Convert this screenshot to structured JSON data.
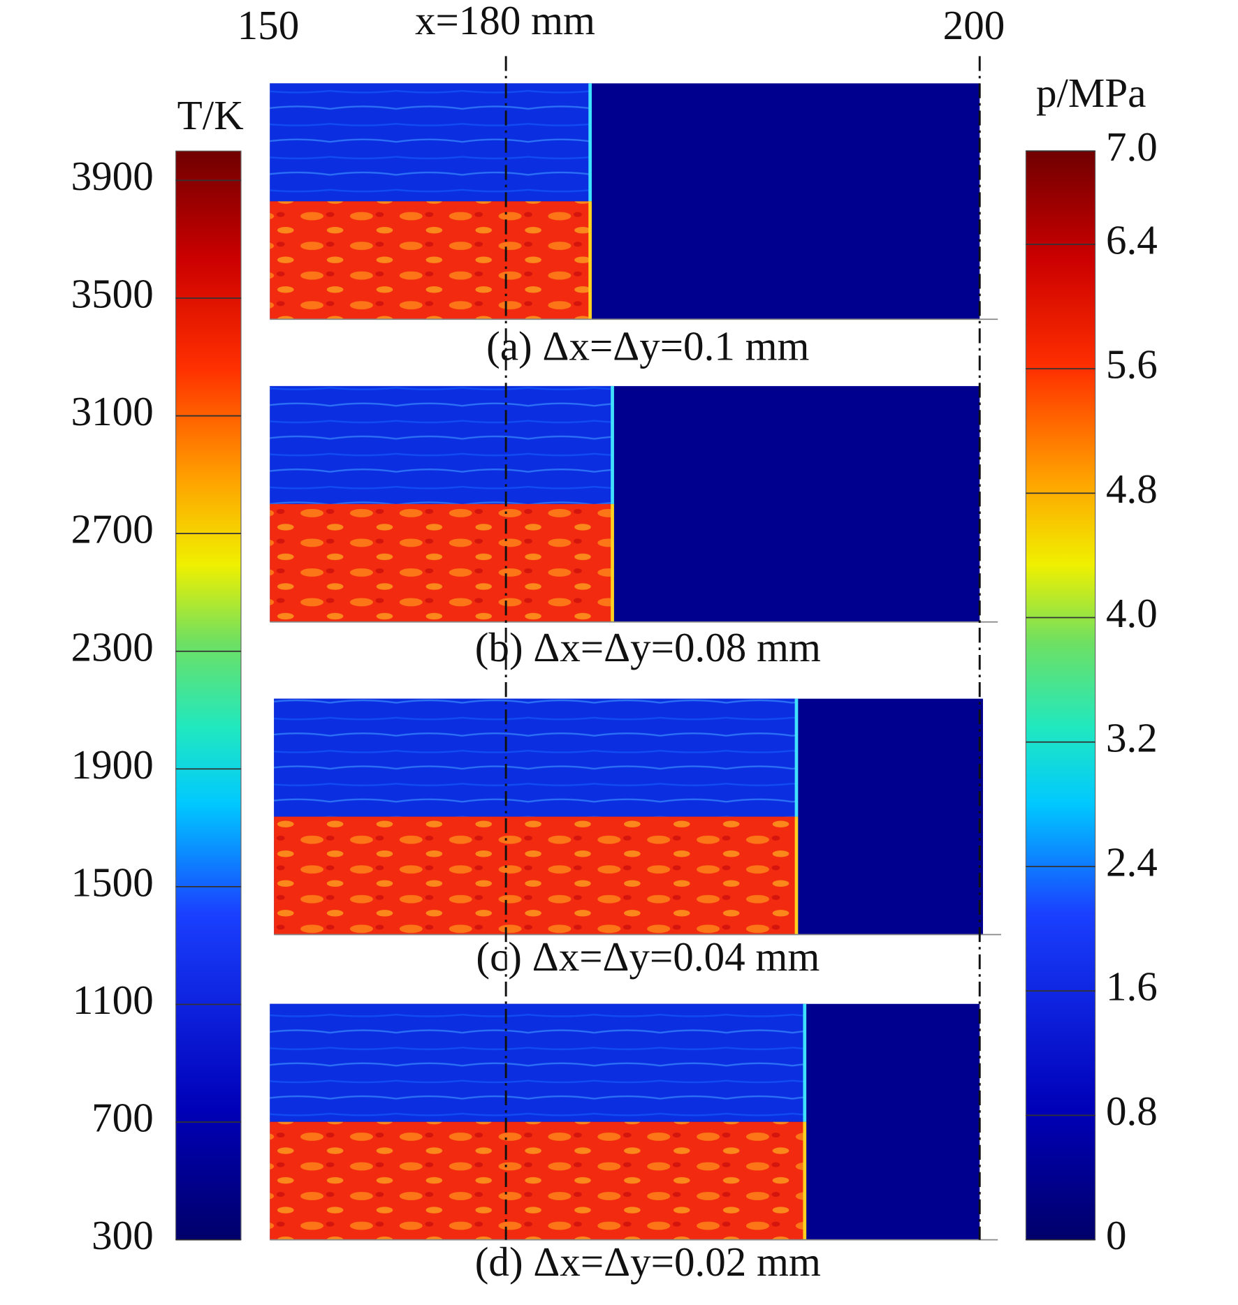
{
  "top_axis": {
    "left_label": "150",
    "right_label": "200",
    "marker_label": "x=180 mm"
  },
  "temperature_bar": {
    "title": "T/K",
    "lim": [
      300,
      4000
    ],
    "ticks": [
      300,
      700,
      1100,
      1500,
      1900,
      2300,
      2700,
      3100,
      3500,
      3900
    ]
  },
  "pressure_bar": {
    "title": "p/MPa",
    "lim": [
      0,
      7
    ],
    "ticks": [
      0,
      {
        "value": 0.8,
        "label": "0.8"
      },
      {
        "value": 1.6,
        "label": "1.6"
      },
      {
        "value": 2.4,
        "label": "2.4"
      },
      {
        "value": 3.2,
        "label": "3.2"
      },
      {
        "value": 4,
        "label": "4.0"
      },
      {
        "value": 4.8,
        "label": "4.8"
      },
      {
        "value": 5.6,
        "label": "5.6"
      },
      {
        "value": 6.4,
        "label": "6.4"
      },
      {
        "value": 7,
        "label": "7.0"
      }
    ]
  },
  "panels": [
    {
      "caption": "(a) Δx=Δy=0.1 mm"
    },
    {
      "caption": "(b) Δx=Δy=0.08 mm"
    },
    {
      "caption": "(c) Δx=Δy=0.04 mm"
    },
    {
      "caption": "(d) Δx=Δy=0.02 mm"
    }
  ]
}
